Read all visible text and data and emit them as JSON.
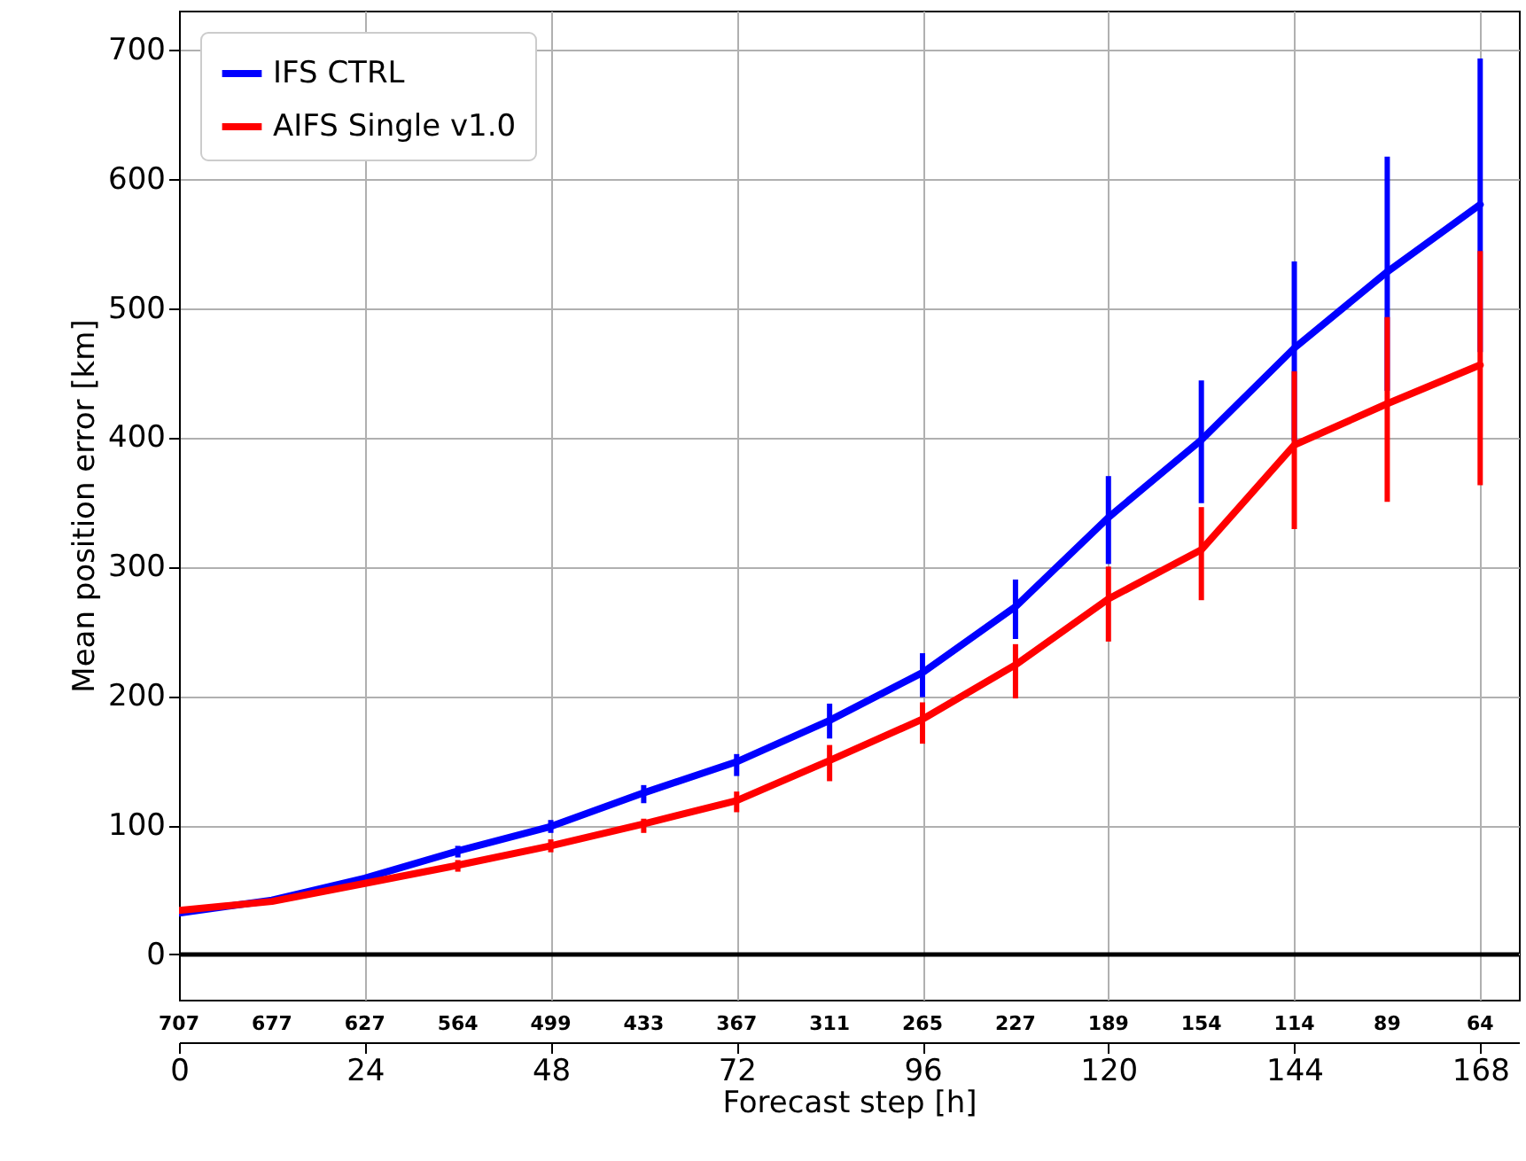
{
  "chart_data": {
    "type": "line",
    "xlabel": "Forecast step [h]",
    "ylabel": "Mean position error [km]",
    "x": [
      0,
      12,
      24,
      36,
      48,
      60,
      72,
      84,
      96,
      108,
      120,
      132,
      144,
      156,
      168
    ],
    "series": [
      {
        "name": "IFS CTRL",
        "color": "#0000ff",
        "values": [
          32,
          42,
          59,
          80,
          99,
          125,
          149,
          181,
          218,
          269,
          338,
          398,
          469,
          528,
          580
        ],
        "errors": [
          null,
          null,
          null,
          [
            75,
            84
          ],
          [
            94,
            104
          ],
          [
            117,
            131
          ],
          [
            138,
            155
          ],
          [
            167,
            194
          ],
          [
            199,
            233
          ],
          [
            244,
            290
          ],
          [
            302,
            370
          ],
          [
            349,
            444
          ],
          [
            397,
            536
          ],
          [
            436,
            617
          ],
          [
            466,
            693
          ]
        ]
      },
      {
        "name": "AIFS Single v1.0",
        "color": "#ff0000",
        "values": [
          34,
          41,
          55,
          69,
          84,
          101,
          119,
          150,
          182,
          224,
          275,
          313,
          394,
          426,
          456
        ],
        "errors": [
          null,
          null,
          null,
          [
            64,
            73
          ],
          [
            79,
            89
          ],
          [
            94,
            105
          ],
          [
            110,
            126
          ],
          [
            134,
            162
          ],
          [
            163,
            195
          ],
          [
            198,
            240
          ],
          [
            242,
            300
          ],
          [
            274,
            346
          ],
          [
            329,
            451
          ],
          [
            350,
            493
          ],
          [
            363,
            544
          ]
        ]
      }
    ],
    "xlim": [
      0,
      173
    ],
    "xticks": [
      0,
      24,
      48,
      72,
      96,
      120,
      144,
      168
    ],
    "ylim": [
      -35,
      730
    ],
    "yticks": [
      0,
      100,
      200,
      300,
      400,
      500,
      600,
      700
    ],
    "annotations": [
      "707",
      "677",
      "627",
      "564",
      "499",
      "433",
      "367",
      "311",
      "265",
      "227",
      "189",
      "154",
      "114",
      "89",
      "64"
    ],
    "ref_lines": [
      {
        "axis": "y",
        "value": 0,
        "color": "#000000"
      }
    ],
    "grid": true,
    "legend": "top left",
    "marker": "none",
    "line_style": "solid"
  }
}
